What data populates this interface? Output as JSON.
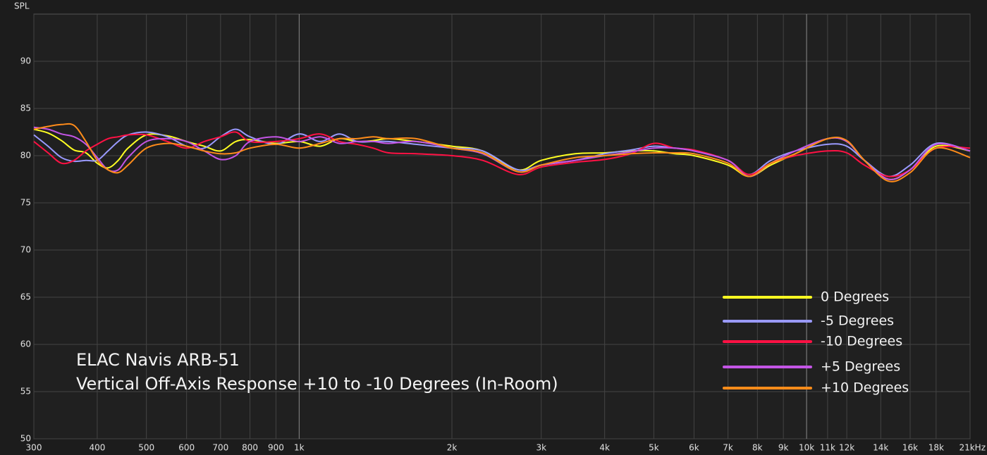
{
  "chart_data": {
    "type": "line",
    "y_label": "SPL",
    "annotations": [
      "ELAC Navis ARB-51",
      "Vertical Off-Axis Response +10 to -10 Degrees (In-Room)"
    ],
    "log_x": true,
    "grid": true,
    "legend": "lower right",
    "xlim": [
      300,
      21000
    ],
    "ylim": [
      50,
      95
    ],
    "yticks": [
      50,
      55,
      60,
      65,
      70,
      75,
      80,
      85,
      90
    ],
    "xticks": [
      300,
      400,
      500,
      600,
      700,
      800,
      900,
      {
        "value": 1000,
        "label": "1k"
      },
      {
        "value": 2000,
        "label": "2k"
      },
      {
        "value": 3000,
        "label": "3k"
      },
      {
        "value": 4000,
        "label": "4k"
      },
      {
        "value": 5000,
        "label": "5k"
      },
      {
        "value": 6000,
        "label": "6k"
      },
      {
        "value": 7000,
        "label": "7k"
      },
      {
        "value": 8000,
        "label": "8k"
      },
      {
        "value": 9000,
        "label": "9k"
      },
      {
        "value": 10000,
        "label": "10k"
      },
      {
        "value": 11000,
        "label": "11k"
      },
      {
        "value": 12000,
        "label": "12k"
      },
      {
        "value": 14000,
        "label": "14k"
      },
      {
        "value": 16000,
        "label": "16k"
      },
      {
        "value": 18000,
        "label": "18k"
      },
      {
        "value": 21000,
        "label": "21kHz"
      }
    ],
    "x": [
      300,
      320,
      340,
      360,
      380,
      400,
      420,
      440,
      460,
      500,
      550,
      600,
      650,
      700,
      750,
      800,
      900,
      1000,
      1100,
      1200,
      1300,
      1400,
      1500,
      1700,
      2000,
      2300,
      2700,
      3000,
      3500,
      4000,
      4500,
      5000,
      5500,
      6000,
      7000,
      7700,
      8500,
      9500,
      11000,
      12000,
      13000,
      14500,
      16000,
      18000,
      21000
    ],
    "series": [
      {
        "name": "0 Degrees",
        "color": "#ffff22",
        "values": [
          82.8,
          82.4,
          81.6,
          80.6,
          80.3,
          79.2,
          78.7,
          79.5,
          80.8,
          82.2,
          82.1,
          81.5,
          81.0,
          80.5,
          81.5,
          81.7,
          81.3,
          81.5,
          81.0,
          81.8,
          81.5,
          81.6,
          81.8,
          81.5,
          81.0,
          80.5,
          78.5,
          79.5,
          80.2,
          80.3,
          80.5,
          80.5,
          80.2,
          80.0,
          79.0,
          77.8,
          79.0,
          80.2,
          81.8,
          81.5,
          79.5,
          77.5,
          78.5,
          81.0,
          80.5
        ]
      },
      {
        "name": "-5 Degrees",
        "color": "#9a9aff",
        "values": [
          82.2,
          81.0,
          79.8,
          79.4,
          79.5,
          79.5,
          80.5,
          81.5,
          82.2,
          82.5,
          82.0,
          81.0,
          80.8,
          82.0,
          82.8,
          82.0,
          81.2,
          82.3,
          81.5,
          82.3,
          81.5,
          81.5,
          81.5,
          81.2,
          80.8,
          80.5,
          78.5,
          79.0,
          79.5,
          80.2,
          80.6,
          81.0,
          80.8,
          80.5,
          79.5,
          78.0,
          79.5,
          80.5,
          81.2,
          81.0,
          79.5,
          77.8,
          79.0,
          81.3,
          80.5
        ]
      },
      {
        "name": "-10 Degrees",
        "color": "#ff1144",
        "values": [
          81.5,
          80.3,
          79.2,
          79.5,
          80.5,
          81.2,
          81.8,
          82.0,
          82.2,
          82.2,
          81.5,
          80.8,
          81.5,
          82.0,
          82.5,
          81.5,
          81.5,
          81.8,
          82.3,
          81.5,
          81.2,
          80.8,
          80.3,
          80.2,
          80.0,
          79.5,
          78.0,
          78.8,
          79.3,
          79.6,
          80.2,
          81.3,
          80.8,
          80.6,
          79.5,
          78.0,
          79.2,
          80.0,
          80.5,
          80.3,
          79.0,
          77.8,
          78.5,
          80.8,
          80.8
        ]
      },
      {
        "name": "+5 Degrees",
        "color": "#c455e6",
        "values": [
          83.0,
          82.8,
          82.3,
          82.0,
          81.2,
          79.8,
          78.5,
          78.5,
          79.8,
          81.5,
          81.8,
          81.5,
          80.5,
          79.6,
          80.0,
          81.5,
          82.0,
          81.5,
          82.0,
          81.3,
          81.5,
          81.5,
          81.3,
          81.5,
          80.8,
          80.2,
          78.3,
          79.0,
          79.5,
          80.0,
          80.4,
          80.8,
          80.8,
          80.5,
          79.5,
          77.8,
          79.2,
          80.5,
          81.8,
          81.5,
          79.5,
          77.5,
          78.5,
          81.2,
          80.5
        ]
      },
      {
        "name": "+10 Degrees",
        "color": "#ff8c1a",
        "values": [
          82.8,
          83.1,
          83.3,
          83.2,
          81.5,
          79.5,
          78.5,
          78.2,
          79.0,
          80.8,
          81.3,
          81.0,
          80.5,
          80.2,
          80.3,
          80.8,
          81.2,
          80.8,
          81.3,
          81.8,
          81.8,
          82.0,
          81.8,
          81.8,
          80.8,
          80.3,
          78.3,
          79.0,
          79.8,
          80.0,
          80.2,
          80.3,
          80.3,
          80.2,
          79.2,
          77.8,
          79.2,
          80.2,
          81.8,
          81.6,
          79.5,
          77.3,
          78.2,
          80.8,
          79.8
        ]
      }
    ]
  }
}
